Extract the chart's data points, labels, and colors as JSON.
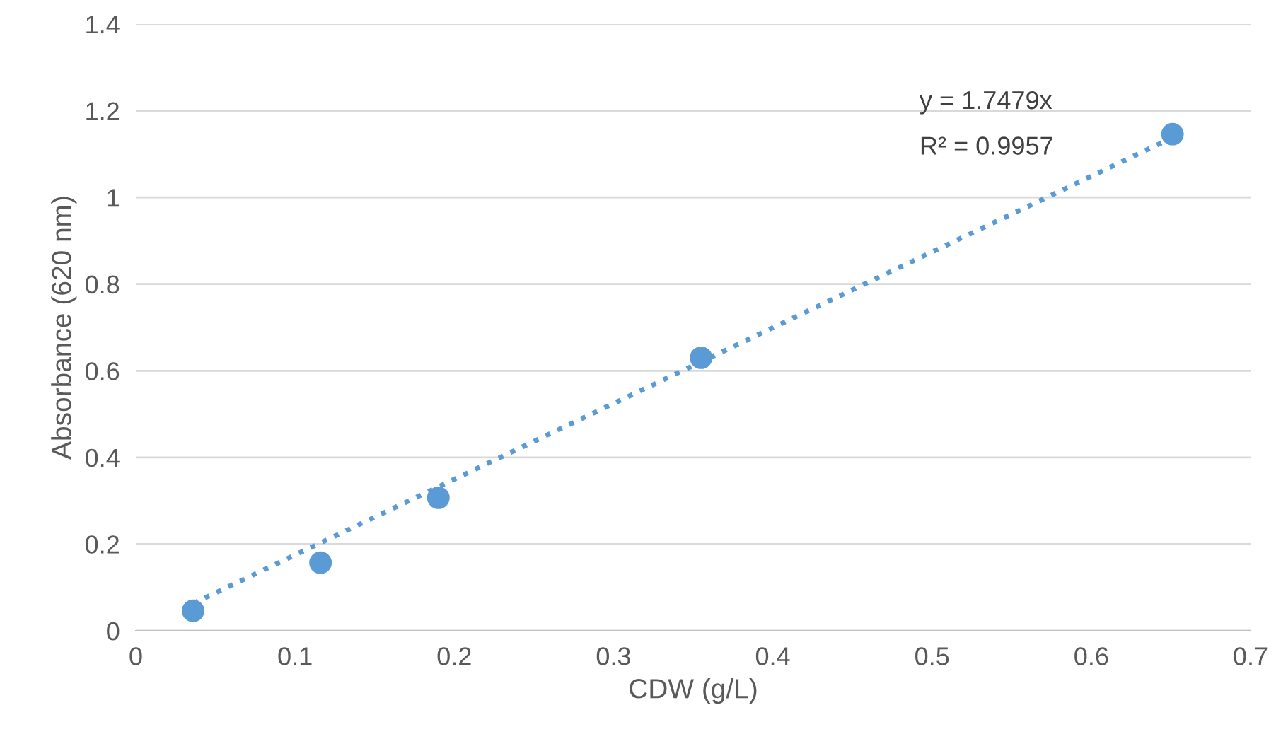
{
  "chart_data": {
    "type": "scatter",
    "xlabel": "CDW (g/L)",
    "ylabel": "Absorbance (620 nm)",
    "series": [
      {
        "color": "#5b9bd5",
        "marker": "circle",
        "x": [
          0.036,
          0.116,
          0.19,
          0.355,
          0.651
        ],
        "values": [
          0.046,
          0.157,
          0.307,
          0.63,
          1.146
        ]
      },
      {
        "type": "line",
        "color": "#5b9bd5",
        "line_style": "dotted",
        "marker": "none",
        "x": [
          0.036,
          0.651
        ],
        "values": [
          0.063,
          1.138
        ]
      }
    ],
    "annotations": [
      "y = 1.7479x",
      "R² = 0.9957"
    ],
    "xlim": [
      0,
      0.7
    ],
    "xticks": [
      0,
      0.1,
      0.2,
      0.3,
      0.4,
      0.5,
      0.6,
      0.7
    ],
    "ylim": [
      0,
      1.4
    ],
    "yticks": [
      0,
      0.2,
      0.4,
      0.6,
      0.8,
      1,
      1.2,
      1.4
    ],
    "grid": "y",
    "legend": false
  }
}
